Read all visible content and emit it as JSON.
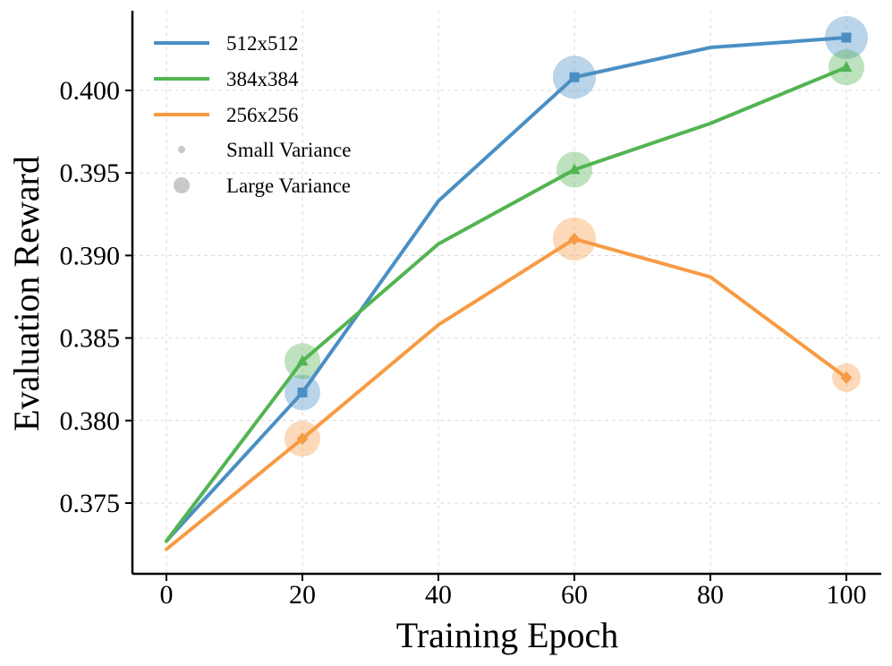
{
  "chart_data": {
    "type": "line",
    "title": "",
    "xlabel": "Training Epoch",
    "ylabel": "Evaluation Reward",
    "xlim": [
      -5,
      105
    ],
    "ylim": [
      0.3707,
      0.4043
    ],
    "xticks": [
      0,
      20,
      40,
      60,
      80,
      100
    ],
    "xtick_labels": [
      "0",
      "20",
      "40",
      "60",
      "80",
      "100"
    ],
    "yticks": [
      0.375,
      0.38,
      0.385,
      0.39,
      0.395,
      0.4
    ],
    "ytick_labels": [
      "0.375",
      "0.380",
      "0.385",
      "0.390",
      "0.395",
      "0.400"
    ],
    "grid": true,
    "legend_position": "top-left",
    "series": [
      {
        "name": "512x512",
        "color": "#4a8fc4",
        "marker": "square",
        "x": [
          0,
          20,
          40,
          60,
          80,
          100
        ],
        "y": [
          0.3727,
          0.3817,
          0.3933,
          0.4008,
          0.4026,
          0.4032
        ],
        "bubbles": [
          {
            "x": 20,
            "y": 0.3817,
            "variance": "medium"
          },
          {
            "x": 60,
            "y": 0.4008,
            "variance": "large"
          },
          {
            "x": 100,
            "y": 0.4032,
            "variance": "large"
          }
        ]
      },
      {
        "name": "384x384",
        "color": "#52b452",
        "marker": "triangle",
        "x": [
          0,
          20,
          40,
          60,
          80,
          100
        ],
        "y": [
          0.3727,
          0.3836,
          0.3907,
          0.3952,
          0.398,
          0.4014
        ],
        "bubbles": [
          {
            "x": 20,
            "y": 0.3836,
            "variance": "medium"
          },
          {
            "x": 60,
            "y": 0.3952,
            "variance": "medium"
          },
          {
            "x": 100,
            "y": 0.4014,
            "variance": "medium"
          }
        ]
      },
      {
        "name": "256x256",
        "color": "#f79b44",
        "marker": "diamond",
        "x": [
          0,
          20,
          40,
          60,
          80,
          100
        ],
        "y": [
          0.3722,
          0.3789,
          0.3858,
          0.391,
          0.3887,
          0.3826
        ],
        "bubbles": [
          {
            "x": 20,
            "y": 0.3789,
            "variance": "medium"
          },
          {
            "x": 60,
            "y": 0.391,
            "variance": "large"
          },
          {
            "x": 100,
            "y": 0.3826,
            "variance": "small"
          }
        ]
      }
    ],
    "legend": {
      "series_labels": [
        "512x512",
        "384x384",
        "256x256"
      ],
      "size_labels": [
        "Small Variance",
        "Large Variance"
      ]
    }
  }
}
